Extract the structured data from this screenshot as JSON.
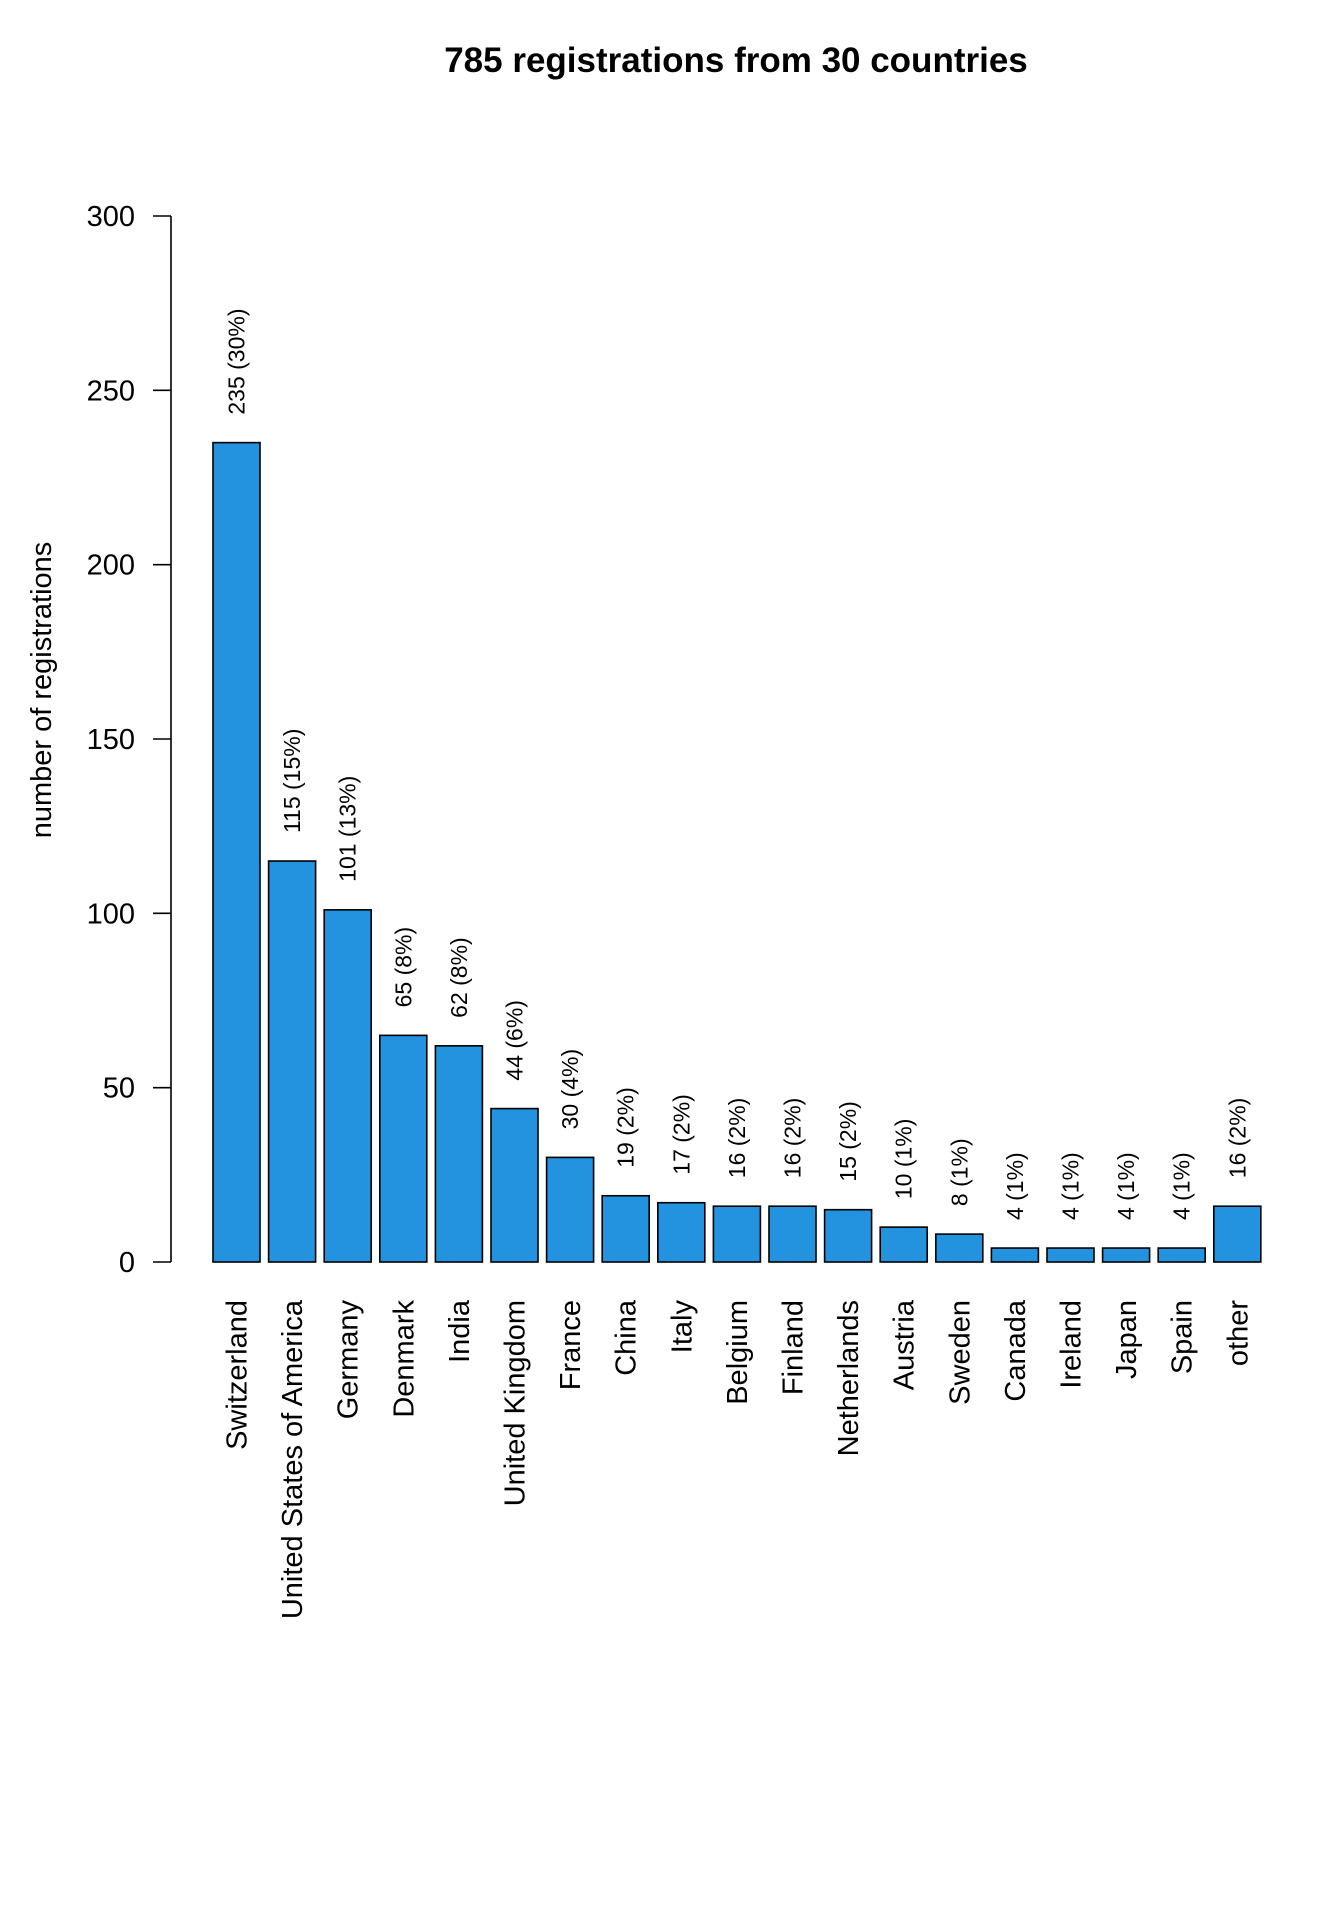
{
  "chart_data": {
    "type": "bar",
    "title": "785 registrations from 30 countries",
    "xlabel": "",
    "ylabel": "number of registrations",
    "ylim": [
      0,
      300
    ],
    "yticks": [
      "0",
      "50",
      "100",
      "150",
      "200",
      "250",
      "300"
    ],
    "grid": false,
    "legend": "none",
    "bar_color": "#2393E0",
    "bar_outline": "#000000",
    "categories": [
      "Switzerland",
      "United States of America",
      "Germany",
      "Denmark",
      "India",
      "United Kingdom",
      "France",
      "China",
      "Italy",
      "Belgium",
      "Finland",
      "Netherlands",
      "Austria",
      "Sweden",
      "Canada",
      "Ireland",
      "Japan",
      "Spain",
      "other"
    ],
    "values": [
      235,
      115,
      101,
      65,
      62,
      44,
      30,
      19,
      17,
      16,
      16,
      15,
      10,
      8,
      4,
      4,
      4,
      4,
      16
    ],
    "data_labels": [
      "235 (30%)",
      "115 (15%)",
      "101 (13%)",
      "65 (8%)",
      "62 (8%)",
      "44 (6%)",
      "30 (4%)",
      "19 (2%)",
      "17 (2%)",
      "16 (2%)",
      "16 (2%)",
      "15 (2%)",
      "10 (1%)",
      "8 (1%)",
      "4 (1%)",
      "4 (1%)",
      "4 (1%)",
      "4 (1%)",
      "16 (2%)"
    ]
  }
}
